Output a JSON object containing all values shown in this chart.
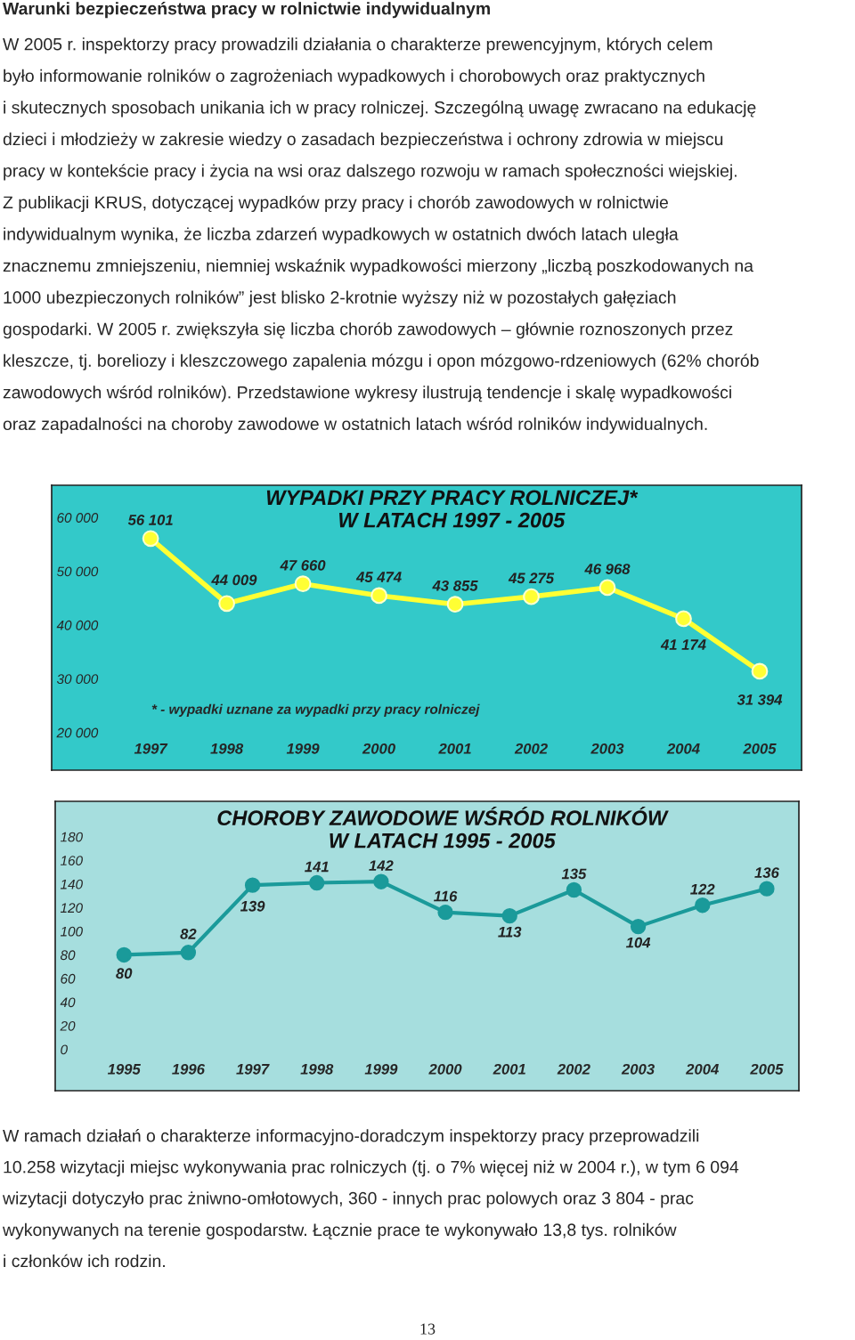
{
  "chart_data": [
    {
      "type": "line",
      "title": "WYPADKI PRZY PRACY ROLNICZEJ*\nW LATACH 1997 - 2005",
      "categories": [
        "1997",
        "1998",
        "1999",
        "2000",
        "2001",
        "2002",
        "2003",
        "2004",
        "2005"
      ],
      "series": [
        {
          "color": "#ffff33",
          "values": [
            56101,
            44009,
            47660,
            45474,
            43855,
            45275,
            46968,
            41174,
            31394
          ],
          "value_labels": [
            "56 101",
            "44 009",
            "47 660",
            "45 474",
            "43 855",
            "45 275",
            "46 968",
            "41 174",
            "31 394"
          ]
        }
      ],
      "ylim": [
        13000,
        66000
      ],
      "yticks": [
        {
          "value": 20000,
          "label": "20 000"
        },
        {
          "value": 30000,
          "label": "30 000"
        },
        {
          "value": 40000,
          "label": "40 000"
        },
        {
          "value": 50000,
          "label": "50 000"
        },
        {
          "value": 60000,
          "label": "60 000"
        }
      ],
      "marker": "circle",
      "line_style": "solid",
      "grid": false,
      "annotations": [
        "Warunki bezpieczeństwa pracy w rolnictwie indywidualnym",
        "W 2005 r. inspektorzy pracy prowadzili działania o charakterze prewencyjnym, których celem\nbyło informowanie rolników o zagrożeniach wypadkowych i chorobowych oraz praktycznych\ni skutecznych sposobach unikania ich w pracy rolniczej. Szczególną uwagę zwracano na edukację\ndzieci i młodzieży w zakresie wiedzy o zasadach bezpieczeństwa i ochrony zdrowia w miejscu\npracy w kontekście pracy i życia na wsi oraz dalszego rozwoju w ramach społeczności wiejskiej.\nZ publikacji KRUS, dotyczącej wypadków przy pracy i chorób zawodowych w rolnictwie\nindywidualnym wynika, że liczba zdarzeń wypadkowych w ostatnich dwóch latach uległa\nznacznemu zmniejszeniu, niemniej wskaźnik wypadkowości mierzony „liczbą poszkodowanych na\n1000 ubezpieczonych rolników” jest blisko 2-krotnie wyższy niż w pozostałych gałęziach\ngospodarki. W 2005 r. zwiększyła się liczba chorób zawodowych – głównie roznoszonych przez\nkleszcze, tj. boreliozy i kleszczowego zapalenia mózgu i opon mózgowo-rdzeniowych (62% chorób\nzawodowych wśród rolników). Przedstawione wykresy ilustrują tendencje i skalę wypadkowości\noraz zapadalności na choroby zawodowe w ostatnich latach wśród rolników indywidualnych.",
        "* - wypadki uznane za wypadki przy pracy rolniczej"
      ]
    },
    {
      "type": "line",
      "title": "CHOROBY ZAWODOWE WŚRÓD ROLNIKÓW\nW LATACH 1995 - 2005",
      "categories": [
        "1995",
        "1996",
        "1997",
        "1998",
        "1999",
        "2000",
        "2001",
        "2002",
        "2003",
        "2004",
        "2005"
      ],
      "series": [
        {
          "color": "#1a9a9a",
          "values": [
            80,
            82,
            139,
            141,
            142,
            116,
            113,
            135,
            104,
            122,
            136
          ]
        }
      ],
      "ylim": [
        -35,
        210
      ],
      "yticks": [
        0,
        20,
        40,
        60,
        80,
        100,
        120,
        140,
        160,
        180
      ],
      "marker": "circle",
      "line_style": "solid",
      "grid": false,
      "data_labels": true,
      "annotations": [
        "W ramach działań o charakterze informacyjno-doradczym inspektorzy pracy przeprowadzili\n10.258 wizytacji miejsc wykonywania prac rolniczych (tj. o 7% więcej niż w 2004 r.), w tym 6 094\nwizytacji dotyczyło prac żniwno-omłotowych, 360 - innych prac polowych oraz 3 804 - prac\nwykonywanych na terenie gospodarstw. Łącznie prace te wykonywało 13,8 tys. rolników\ni członków ich rodzin.",
        "13"
      ]
    }
  ]
}
